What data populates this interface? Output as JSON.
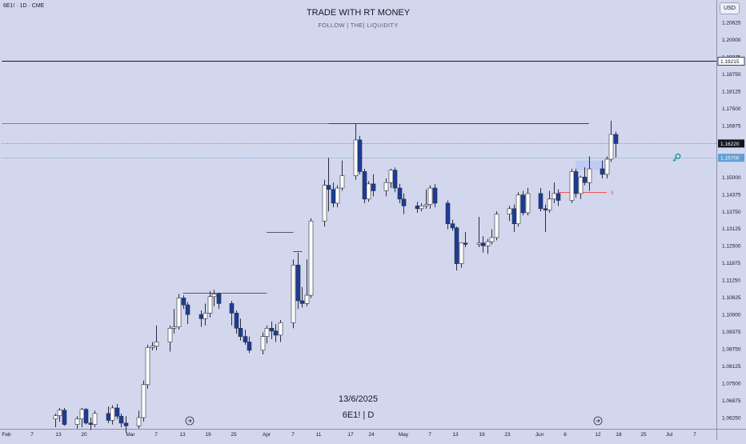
{
  "header": {
    "symbol": "6E1! · 1D · CME",
    "title": "TRADE WITH RT MONEY",
    "subtitle": "FOLLOW   |   THE|   LIQUIDITY"
  },
  "watermark": {
    "date": "13/6/2025",
    "symbol": "6E1! | D"
  },
  "currency_button": "USD",
  "colors": {
    "background": "#d3d7ee",
    "bull_body": "#ffffff",
    "bear_body": "#1b3c99",
    "wick": "#2a2e39",
    "red_line": "#f05050",
    "blue_line": "#5ea0d6",
    "black_line": "#131722",
    "zone_fill": "#bcc8f5",
    "key_icon": "#1a9c8f"
  },
  "chart_data": {
    "type": "candlestick",
    "y_ticks": [
      "1.20625",
      "1.20000",
      "1.19375",
      "1.18750",
      "1.18125",
      "1.17500",
      "1.16875",
      "1.15000",
      "1.14375",
      "1.13750",
      "1.13125",
      "1.12500",
      "1.11875",
      "1.11250",
      "1.10625",
      "1.10000",
      "1.09375",
      "1.08750",
      "1.08125",
      "1.07500",
      "1.06875",
      "1.06250"
    ],
    "x_ticks": [
      "Feb",
      "7",
      "13",
      "20",
      "Mar",
      "7",
      "13",
      "19",
      "25",
      "Apr",
      "7",
      "11",
      "17",
      "24",
      "May",
      "7",
      "13",
      "19",
      "23",
      "Jun",
      "6",
      "12",
      "18",
      "25",
      "Jul",
      "7"
    ],
    "price_labels": [
      {
        "value": 1.19215,
        "text": "1.19215",
        "style": "black"
      },
      {
        "value": 1.1622,
        "text": "1.16220",
        "style": "dark"
      },
      {
        "value": 1.157,
        "text": "1.15700",
        "style": "blue"
      }
    ],
    "levels": [
      {
        "price": 1.19215,
        "color": "#131722",
        "style": "solid",
        "from": "2025-01-31",
        "to": "end"
      },
      {
        "price": 1.1695,
        "color": "#f05050",
        "style": "solid",
        "from": "2025-01-31",
        "to": "2025-06-13"
      },
      {
        "price": 1.1622,
        "color": "#7d8196",
        "style": "dotted",
        "from": "2025-01-31",
        "to": "end"
      },
      {
        "price": 1.157,
        "color": "#5ea0d6",
        "style": "dotted",
        "from": "2025-01-31",
        "to": "end"
      }
    ],
    "structure_lines": [
      {
        "price": 1.108,
        "from": "2025-03-13",
        "to": "2025-04-01"
      },
      {
        "price": 1.13,
        "from": "2025-04-01",
        "to": "2025-04-07"
      },
      {
        "price": 1.123,
        "from": "2025-04-07",
        "to": "2025-04-09"
      },
      {
        "price": 1.1695,
        "from": "2025-04-15",
        "to": "2025-06-13"
      }
    ],
    "marker_s": {
      "label": "S",
      "price": 1.1445,
      "from": "2025-06-06",
      "to": "2025-06-17"
    },
    "zone": {
      "from": "2025-06-10",
      "to": "2025-06-17",
      "top": 1.156,
      "bottom": 1.1525
    },
    "candles": [
      {
        "date": "2025-02-12",
        "o": 1.062,
        "h": 1.064,
        "l": 1.059,
        "c": 1.0632
      },
      {
        "date": "2025-02-13",
        "o": 1.0632,
        "h": 1.066,
        "l": 1.061,
        "c": 1.0652
      },
      {
        "date": "2025-02-14",
        "o": 1.0652,
        "h": 1.066,
        "l": 1.0595,
        "c": 1.06
      },
      {
        "date": "2025-02-17",
        "o": 1.06,
        "h": 1.063,
        "l": 1.0585,
        "c": 1.062
      },
      {
        "date": "2025-02-18",
        "o": 1.062,
        "h": 1.066,
        "l": 1.059,
        "c": 1.0655
      },
      {
        "date": "2025-02-19",
        "o": 1.0655,
        "h": 1.066,
        "l": 1.06,
        "c": 1.0605
      },
      {
        "date": "2025-02-20",
        "o": 1.0605,
        "h": 1.0625,
        "l": 1.058,
        "c": 1.06
      },
      {
        "date": "2025-02-21",
        "o": 1.06,
        "h": 1.065,
        "l": 1.059,
        "c": 1.064
      },
      {
        "date": "2025-02-24",
        "o": 1.064,
        "h": 1.0665,
        "l": 1.0605,
        "c": 1.0615
      },
      {
        "date": "2025-02-25",
        "o": 1.0615,
        "h": 1.067,
        "l": 1.06,
        "c": 1.066
      },
      {
        "date": "2025-02-26",
        "o": 1.066,
        "h": 1.0675,
        "l": 1.062,
        "c": 1.063
      },
      {
        "date": "2025-02-27",
        "o": 1.063,
        "h": 1.064,
        "l": 1.059,
        "c": 1.0605
      },
      {
        "date": "2025-02-28",
        "o": 1.0605,
        "h": 1.063,
        "l": 1.057,
        "c": 1.0595
      },
      {
        "date": "2025-03-03",
        "o": 1.0595,
        "h": 1.065,
        "l": 1.0585,
        "c": 1.0625
      },
      {
        "date": "2025-03-04",
        "o": 1.0625,
        "h": 1.076,
        "l": 1.061,
        "c": 1.0745
      },
      {
        "date": "2025-03-05",
        "o": 1.0745,
        "h": 1.089,
        "l": 1.073,
        "c": 1.088
      },
      {
        "date": "2025-03-06",
        "o": 1.088,
        "h": 1.09,
        "l": 1.087,
        "c": 1.0885
      },
      {
        "date": "2025-03-07",
        "o": 1.0885,
        "h": 1.096,
        "l": 1.087,
        "c": 1.09
      },
      {
        "date": "2025-03-10",
        "o": 1.09,
        "h": 1.096,
        "l": 1.0865,
        "c": 1.095
      },
      {
        "date": "2025-03-11",
        "o": 1.095,
        "h": 1.102,
        "l": 1.093,
        "c": 1.0955
      },
      {
        "date": "2025-03-12",
        "o": 1.0955,
        "h": 1.1075,
        "l": 1.0945,
        "c": 1.106
      },
      {
        "date": "2025-03-13",
        "o": 1.106,
        "h": 1.107,
        "l": 1.102,
        "c": 1.1035
      },
      {
        "date": "2025-03-14",
        "o": 1.1035,
        "h": 1.1045,
        "l": 1.0965,
        "c": 1.1
      },
      {
        "date": "2025-03-17",
        "o": 1.1,
        "h": 1.1015,
        "l": 1.0955,
        "c": 1.0985
      },
      {
        "date": "2025-03-18",
        "o": 1.0985,
        "h": 1.104,
        "l": 1.096,
        "c": 1.1005
      },
      {
        "date": "2025-03-19",
        "o": 1.1005,
        "h": 1.1085,
        "l": 1.099,
        "c": 1.1065
      },
      {
        "date": "2025-03-20",
        "o": 1.1065,
        "h": 1.109,
        "l": 1.103,
        "c": 1.1075
      },
      {
        "date": "2025-03-21",
        "o": 1.1075,
        "h": 1.108,
        "l": 1.102,
        "c": 1.104
      },
      {
        "date": "2025-03-24",
        "o": 1.104,
        "h": 1.105,
        "l": 1.096,
        "c": 1.1005
      },
      {
        "date": "2025-03-25",
        "o": 1.1005,
        "h": 1.1015,
        "l": 1.093,
        "c": 1.095
      },
      {
        "date": "2025-03-26",
        "o": 1.095,
        "h": 1.0985,
        "l": 1.0905,
        "c": 1.092
      },
      {
        "date": "2025-03-27",
        "o": 1.092,
        "h": 1.0945,
        "l": 1.089,
        "c": 1.09
      },
      {
        "date": "2025-03-28",
        "o": 1.09,
        "h": 1.092,
        "l": 1.086,
        "c": 1.087
      },
      {
        "date": "2025-03-31",
        "o": 1.087,
        "h": 1.0935,
        "l": 1.0855,
        "c": 1.092
      },
      {
        "date": "2025-04-01",
        "o": 1.092,
        "h": 1.096,
        "l": 1.0895,
        "c": 1.095
      },
      {
        "date": "2025-04-02",
        "o": 1.095,
        "h": 1.0975,
        "l": 1.091,
        "c": 1.094
      },
      {
        "date": "2025-04-03",
        "o": 1.094,
        "h": 1.0965,
        "l": 1.09,
        "c": 1.0925
      },
      {
        "date": "2025-04-04",
        "o": 1.0925,
        "h": 1.098,
        "l": 1.09,
        "c": 1.097
      },
      {
        "date": "2025-04-07",
        "o": 1.097,
        "h": 1.12,
        "l": 1.095,
        "c": 1.118
      },
      {
        "date": "2025-04-08",
        "o": 1.118,
        "h": 1.1225,
        "l": 1.102,
        "c": 1.105
      },
      {
        "date": "2025-04-09",
        "o": 1.105,
        "h": 1.11,
        "l": 1.1025,
        "c": 1.104
      },
      {
        "date": "2025-04-10",
        "o": 1.104,
        "h": 1.12,
        "l": 1.103,
        "c": 1.107
      },
      {
        "date": "2025-04-11",
        "o": 1.107,
        "h": 1.135,
        "l": 1.106,
        "c": 1.134
      },
      {
        "date": "2025-04-14",
        "o": 1.134,
        "h": 1.149,
        "l": 1.132,
        "c": 1.147
      },
      {
        "date": "2025-04-15",
        "o": 1.147,
        "h": 1.157,
        "l": 1.1375,
        "c": 1.1455
      },
      {
        "date": "2025-04-16",
        "o": 1.1455,
        "h": 1.148,
        "l": 1.139,
        "c": 1.1405
      },
      {
        "date": "2025-04-17",
        "o": 1.1405,
        "h": 1.147,
        "l": 1.139,
        "c": 1.146
      },
      {
        "date": "2025-04-18",
        "o": 1.146,
        "h": 1.156,
        "l": 1.145,
        "c": 1.1505
      },
      {
        "date": "2025-04-21",
        "o": 1.1505,
        "h": 1.1695,
        "l": 1.149,
        "c": 1.1635
      },
      {
        "date": "2025-04-22",
        "o": 1.1635,
        "h": 1.165,
        "l": 1.151,
        "c": 1.152
      },
      {
        "date": "2025-04-23",
        "o": 1.152,
        "h": 1.153,
        "l": 1.1405,
        "c": 1.142
      },
      {
        "date": "2025-04-24",
        "o": 1.142,
        "h": 1.1485,
        "l": 1.141,
        "c": 1.1475
      },
      {
        "date": "2025-04-25",
        "o": 1.1475,
        "h": 1.151,
        "l": 1.143,
        "c": 1.145
      },
      {
        "date": "2025-04-28",
        "o": 1.145,
        "h": 1.1495,
        "l": 1.143,
        "c": 1.148
      },
      {
        "date": "2025-04-29",
        "o": 1.148,
        "h": 1.153,
        "l": 1.146,
        "c": 1.1525
      },
      {
        "date": "2025-04-30",
        "o": 1.1525,
        "h": 1.1535,
        "l": 1.1445,
        "c": 1.146
      },
      {
        "date": "2025-05-01",
        "o": 1.146,
        "h": 1.1475,
        "l": 1.1405,
        "c": 1.142
      },
      {
        "date": "2025-05-02",
        "o": 1.142,
        "h": 1.144,
        "l": 1.1365,
        "c": 1.1395
      },
      {
        "date": "2025-05-05",
        "o": 1.1395,
        "h": 1.141,
        "l": 1.137,
        "c": 1.1385
      },
      {
        "date": "2025-05-06",
        "o": 1.1385,
        "h": 1.1405,
        "l": 1.1375,
        "c": 1.1395
      },
      {
        "date": "2025-05-07",
        "o": 1.1395,
        "h": 1.1455,
        "l": 1.1385,
        "c": 1.14
      },
      {
        "date": "2025-05-08",
        "o": 1.14,
        "h": 1.147,
        "l": 1.1385,
        "c": 1.146
      },
      {
        "date": "2025-05-09",
        "o": 1.146,
        "h": 1.1475,
        "l": 1.139,
        "c": 1.1405
      },
      {
        "date": "2025-05-12",
        "o": 1.1405,
        "h": 1.1415,
        "l": 1.131,
        "c": 1.133
      },
      {
        "date": "2025-05-13",
        "o": 1.133,
        "h": 1.1345,
        "l": 1.1305,
        "c": 1.1315
      },
      {
        "date": "2025-05-14",
        "o": 1.1315,
        "h": 1.132,
        "l": 1.116,
        "c": 1.1185
      },
      {
        "date": "2025-05-15",
        "o": 1.1185,
        "h": 1.126,
        "l": 1.117,
        "c": 1.126
      },
      {
        "date": "2025-05-16",
        "o": 1.126,
        "h": 1.13,
        "l": 1.1245,
        "c": 1.1255
      },
      {
        "date": "2025-05-19",
        "o": 1.1255,
        "h": 1.1355,
        "l": 1.1245,
        "c": 1.126
      },
      {
        "date": "2025-05-20",
        "o": 1.126,
        "h": 1.1285,
        "l": 1.1225,
        "c": 1.125
      },
      {
        "date": "2025-05-21",
        "o": 1.125,
        "h": 1.1275,
        "l": 1.122,
        "c": 1.1265
      },
      {
        "date": "2025-05-22",
        "o": 1.1265,
        "h": 1.131,
        "l": 1.1255,
        "c": 1.128
      },
      {
        "date": "2025-05-23",
        "o": 1.128,
        "h": 1.1375,
        "l": 1.127,
        "c": 1.1365
      },
      {
        "date": "2025-05-26",
        "o": 1.1365,
        "h": 1.1395,
        "l": 1.134,
        "c": 1.1385
      },
      {
        "date": "2025-05-27",
        "o": 1.1385,
        "h": 1.14,
        "l": 1.13,
        "c": 1.133
      },
      {
        "date": "2025-05-28",
        "o": 1.133,
        "h": 1.1445,
        "l": 1.132,
        "c": 1.1435
      },
      {
        "date": "2025-05-29",
        "o": 1.1435,
        "h": 1.145,
        "l": 1.136,
        "c": 1.137
      },
      {
        "date": "2025-05-30",
        "o": 1.137,
        "h": 1.146,
        "l": 1.136,
        "c": 1.144
      },
      {
        "date": "2025-06-02",
        "o": 1.144,
        "h": 1.146,
        "l": 1.1375,
        "c": 1.1385
      },
      {
        "date": "2025-06-03",
        "o": 1.1385,
        "h": 1.14,
        "l": 1.13,
        "c": 1.138
      },
      {
        "date": "2025-06-04",
        "o": 1.138,
        "h": 1.145,
        "l": 1.137,
        "c": 1.142
      },
      {
        "date": "2025-06-05",
        "o": 1.142,
        "h": 1.148,
        "l": 1.1405,
        "c": 1.144
      },
      {
        "date": "2025-06-06",
        "o": 1.144,
        "h": 1.1455,
        "l": 1.1395,
        "c": 1.1415
      },
      {
        "date": "2025-06-09",
        "o": 1.1415,
        "h": 1.153,
        "l": 1.1405,
        "c": 1.152
      },
      {
        "date": "2025-06-10",
        "o": 1.152,
        "h": 1.153,
        "l": 1.1425,
        "c": 1.144
      },
      {
        "date": "2025-06-11",
        "o": 1.144,
        "h": 1.1505,
        "l": 1.142,
        "c": 1.15
      },
      {
        "date": "2025-06-12",
        "o": 1.15,
        "h": 1.1535,
        "l": 1.147,
        "c": 1.148
      },
      {
        "date": "2025-06-13",
        "o": 1.148,
        "h": 1.1575,
        "l": 1.145,
        "c": 1.153
      },
      {
        "date": "2025-06-16",
        "o": 1.153,
        "h": 1.156,
        "l": 1.1495,
        "c": 1.151
      },
      {
        "date": "2025-06-17",
        "o": 1.151,
        "h": 1.1575,
        "l": 1.1495,
        "c": 1.1565
      },
      {
        "date": "2025-06-18",
        "o": 1.1565,
        "h": 1.1705,
        "l": 1.1555,
        "c": 1.1655
      },
      {
        "date": "2025-06-19",
        "o": 1.1655,
        "h": 1.1665,
        "l": 1.157,
        "c": 1.1622
      }
    ]
  }
}
